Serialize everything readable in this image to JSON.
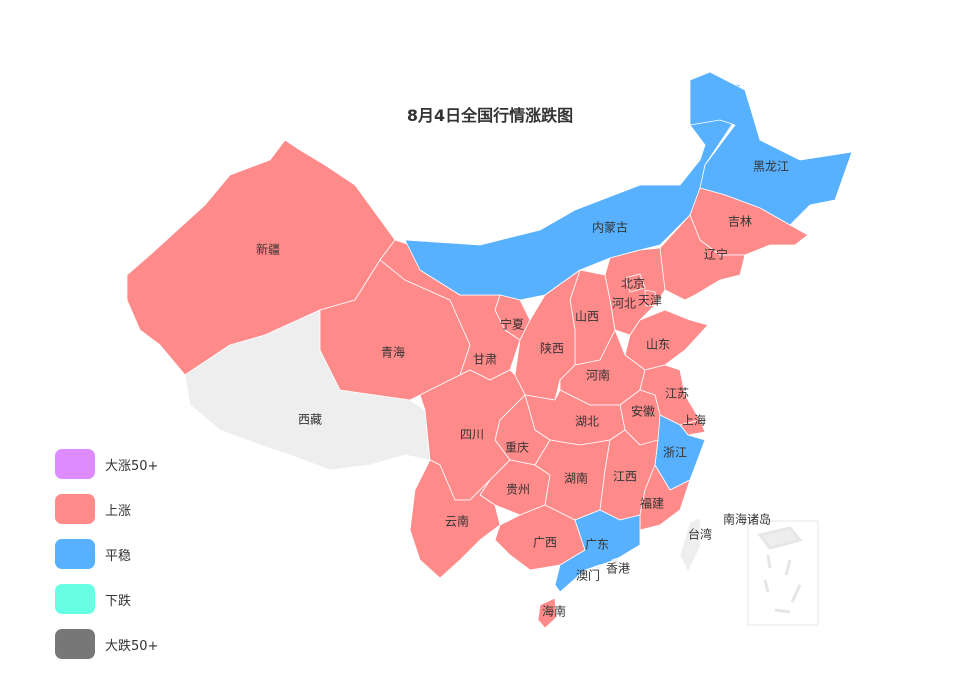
{
  "title": "8月4日全国行情涨跌图",
  "colors": {
    "大涨50+": "#dd8cff",
    "上涨": "#ff8a8a",
    "平稳": "#58b1ff",
    "下跌": "#66ffe4",
    "大跌50+": "#777777",
    "no_data": "#eeeeee"
  },
  "legend": [
    {
      "label": "大涨50+",
      "color": "#dd8cff"
    },
    {
      "label": "上涨",
      "color": "#ff8a8a"
    },
    {
      "label": "平稳",
      "color": "#58b1ff"
    },
    {
      "label": "下跌",
      "color": "#66ffe4"
    },
    {
      "label": "大跌50+",
      "color": "#777777"
    }
  ],
  "regions": [
    {
      "id": "xinjiang",
      "name": "新疆",
      "status": "上涨"
    },
    {
      "id": "xizang",
      "name": "西藏",
      "status": null
    },
    {
      "id": "qinghai",
      "name": "青海",
      "status": "上涨"
    },
    {
      "id": "gansu",
      "name": "甘肃",
      "status": "上涨"
    },
    {
      "id": "neimenggu",
      "name": "内蒙古",
      "status": "平稳"
    },
    {
      "id": "heilongjiang",
      "name": "黑龙江",
      "status": "平稳"
    },
    {
      "id": "jilin",
      "name": "吉林",
      "status": "上涨"
    },
    {
      "id": "liaoning",
      "name": "辽宁",
      "status": "上涨"
    },
    {
      "id": "hebei",
      "name": "河北",
      "status": "上涨"
    },
    {
      "id": "beijing",
      "name": "北京",
      "status": "上涨"
    },
    {
      "id": "tianjin",
      "name": "天津",
      "status": "上涨"
    },
    {
      "id": "shanxi",
      "name": "山西",
      "status": "上涨"
    },
    {
      "id": "shaanxi",
      "name": "陕西",
      "status": "上涨"
    },
    {
      "id": "ningxia",
      "name": "宁夏",
      "status": "上涨"
    },
    {
      "id": "shandong",
      "name": "山东",
      "status": "上涨"
    },
    {
      "id": "henan",
      "name": "河南",
      "status": "上涨"
    },
    {
      "id": "jiangsu",
      "name": "江苏",
      "status": "上涨"
    },
    {
      "id": "anhui",
      "name": "安徽",
      "status": "上涨"
    },
    {
      "id": "shanghai",
      "name": "上海",
      "status": "上涨"
    },
    {
      "id": "zhejiang",
      "name": "浙江",
      "status": "平稳"
    },
    {
      "id": "hubei",
      "name": "湖北",
      "status": "上涨"
    },
    {
      "id": "chongqing",
      "name": "重庆",
      "status": "上涨"
    },
    {
      "id": "sichuan",
      "name": "四川",
      "status": "上涨"
    },
    {
      "id": "guizhou",
      "name": "贵州",
      "status": "上涨"
    },
    {
      "id": "yunnan",
      "name": "云南",
      "status": "上涨"
    },
    {
      "id": "hunan",
      "name": "湖南",
      "status": "上涨"
    },
    {
      "id": "jiangxi",
      "name": "江西",
      "status": "上涨"
    },
    {
      "id": "fujian",
      "name": "福建",
      "status": "上涨"
    },
    {
      "id": "guangxi",
      "name": "广西",
      "status": "上涨"
    },
    {
      "id": "guangdong",
      "name": "广东",
      "status": "平稳"
    },
    {
      "id": "hainan",
      "name": "海南",
      "status": "上涨"
    },
    {
      "id": "taiwan",
      "name": "台湾",
      "status": null
    },
    {
      "id": "xianggang",
      "name": "香港",
      "status": null
    },
    {
      "id": "aomen",
      "name": "澳门",
      "status": null
    },
    {
      "id": "nanhai",
      "name": "南海诸岛",
      "status": null
    }
  ]
}
